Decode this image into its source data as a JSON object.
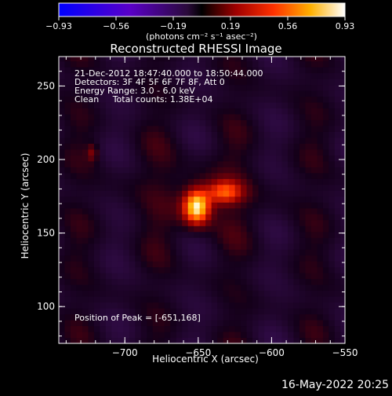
{
  "colorbar": {
    "ticks": [
      "-0.93",
      "-0.56",
      "-0.19",
      "0.19",
      "0.56",
      "0.93"
    ],
    "units": "(photons cm⁻² s⁻¹ asec⁻²)",
    "min": -0.93,
    "max": 0.93
  },
  "title": "Reconstructed RHESSI Image",
  "annotations": {
    "time": "21-Dec-2012 18:47:40.000 to 18:50:44.000",
    "detectors": "Detectors: 3F 4F 5F 6F 7F 8F, Att 0",
    "energy": "Energy Range: 3.0 - 6.0 keV",
    "clean": "Clean     Total counts: 1.38E+04",
    "peak": "Position of Peak = [-651,168]"
  },
  "footer_date": "16-May-2022 20:25",
  "chart_data": {
    "type": "heatmap",
    "title": "Reconstructed RHESSI Image",
    "xlabel": "Heliocentric X (arcsec)",
    "ylabel": "Heliocentric Y (arcsec)",
    "xlim": [
      -745,
      -550
    ],
    "ylim": [
      75,
      270
    ],
    "xticks": [
      -700,
      -650,
      -600,
      -550
    ],
    "xtick_labels": [
      "−700",
      "−650",
      "−600",
      "−550"
    ],
    "yticks": [
      100,
      150,
      200,
      250
    ],
    "ytick_labels": [
      "100",
      "150",
      "200",
      "250"
    ],
    "colorscale": "RHESSI red-temperature (negative: blue-purple, positive: red-yellow-white)",
    "value_range": [
      -0.93,
      0.93
    ],
    "sources": [
      {
        "x": -651,
        "y": 168,
        "peak_value": 0.93,
        "description": "primary bright source"
      },
      {
        "x": -632,
        "y": 178,
        "peak_value": 0.55,
        "description": "secondary source"
      },
      {
        "x": -722,
        "y": 205,
        "peak_value": 0.25,
        "description": "weak spot"
      }
    ],
    "peak_position": [
      -651,
      168
    ]
  }
}
